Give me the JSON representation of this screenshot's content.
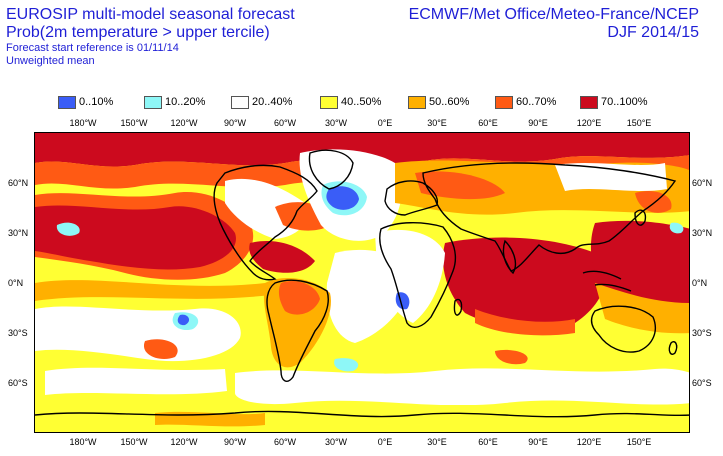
{
  "header": {
    "title_line1": "EUROSIP multi-model seasonal forecast",
    "title_line2": "Prob(2m temperature > upper tercile)",
    "subtitle_line1": "Forecast start reference is 01/11/14",
    "subtitle_line2": "Unweighted mean",
    "source": "ECMWF/Met Office/Meteo-France/NCEP",
    "season": "DJF 2014/15"
  },
  "legend": {
    "items": [
      {
        "label": "0..10%",
        "color": "#3a5df7"
      },
      {
        "label": "10..20%",
        "color": "#8ef7f7"
      },
      {
        "label": "20..40%",
        "color": "#ffffff"
      },
      {
        "label": "40..50%",
        "color": "#ffff33"
      },
      {
        "label": "50..60%",
        "color": "#ffb000"
      },
      {
        "label": "60..70%",
        "color": "#ff5a14"
      },
      {
        "label": "70..100%",
        "color": "#cc0a1e"
      }
    ]
  },
  "map": {
    "x_ticks": [
      "180°W",
      "150°W",
      "120°W",
      "90°W",
      "60°W",
      "30°W",
      "0°E",
      "30°E",
      "60°E",
      "90°E",
      "120°E",
      "150°E"
    ],
    "y_ticks": [
      "60°N",
      "30°N",
      "0°N",
      "30°S",
      "60°S"
    ]
  }
}
